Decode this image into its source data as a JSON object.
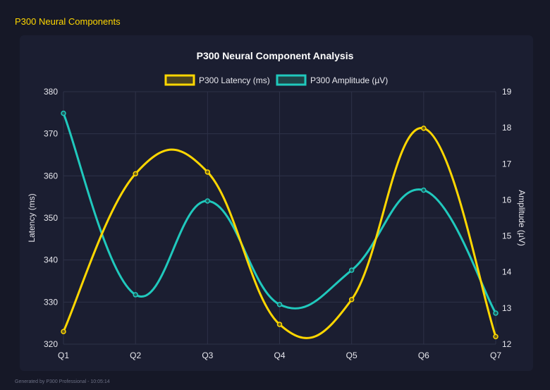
{
  "app_title": "P300 Neural Components",
  "footer": "Generated by P300 Professional - 10:05:14",
  "colors": {
    "latency": "#FFD700",
    "amplitude": "#20C9BD",
    "grid": "#2e3248",
    "text": "#e8e8ee"
  },
  "chart_data": {
    "type": "line",
    "title": "P300 Neural Component Analysis",
    "categories": [
      "Q1",
      "Q2",
      "Q3",
      "Q4",
      "Q5",
      "Q6",
      "Q7"
    ],
    "series": [
      {
        "name": "P300 Latency (ms)",
        "axis": "left",
        "values": [
          323.0,
          360.5,
          360.9,
          324.7,
          330.6,
          371.3,
          321.8
        ]
      },
      {
        "name": "P300 Amplitude (µV)",
        "axis": "right",
        "values": [
          18.4,
          13.37,
          15.97,
          13.1,
          14.05,
          16.27,
          12.86
        ]
      }
    ],
    "ylabel": "Latency (ms)",
    "y2label": "Amplitude (µV)",
    "ylim": [
      320,
      380
    ],
    "yticks": [
      "320",
      "330",
      "340",
      "350",
      "360",
      "370",
      "380"
    ],
    "y2lim": [
      12,
      19
    ],
    "y2ticks": [
      "12",
      "13",
      "14",
      "15",
      "16",
      "17",
      "18",
      "19"
    ],
    "grid": true,
    "legend": "top"
  }
}
